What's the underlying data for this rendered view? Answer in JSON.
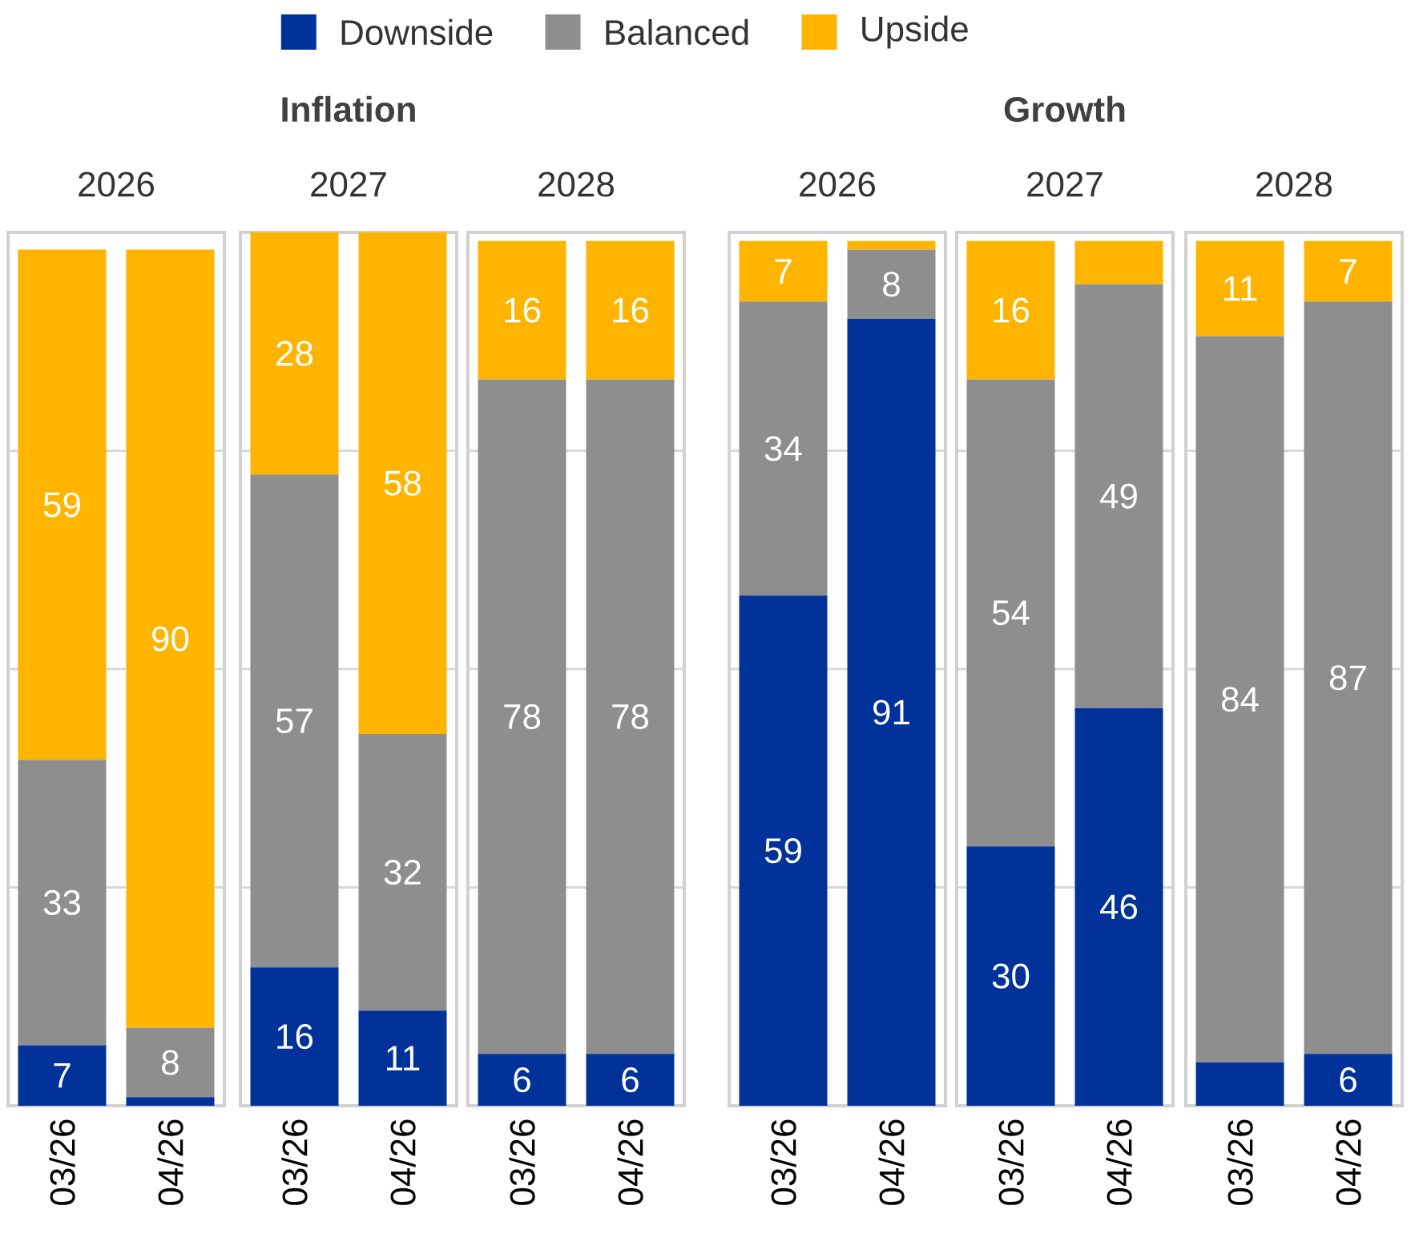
{
  "chart_data": [
    {
      "type": "bar",
      "stacked": true,
      "subtitle": "2026",
      "categories": [
        "03/26",
        "04/26"
      ],
      "legend": "top",
      "grid": "y",
      "tick_labels": "x",
      "series": [
        {
          "name": "Downside",
          "color": "#003299",
          "values": [
            7,
            1
          ],
          "value_labels": [
            "7",
            null
          ]
        },
        {
          "name": "Balanced",
          "color": "#8e8e8e",
          "values": [
            33,
            8
          ],
          "value_labels": [
            "33",
            "8"
          ]
        },
        {
          "name": "Upside",
          "color": "#ffb400",
          "values": [
            59,
            90
          ],
          "value_labels": [
            "59",
            "90"
          ]
        }
      ]
    },
    {
      "type": "bar",
      "stacked": true,
      "title": "Inflation",
      "subtitle": "2027",
      "categories": [
        "03/26",
        "04/26"
      ],
      "grid": "y",
      "tick_labels": "x",
      "series": [
        {
          "color": "#003299",
          "values": [
            16,
            11
          ],
          "value_labels": [
            "16",
            "11"
          ]
        },
        {
          "color": "#8e8e8e",
          "values": [
            57,
            32
          ],
          "value_labels": [
            "57",
            "32"
          ]
        },
        {
          "color": "#ffb400",
          "values": [
            28,
            58
          ],
          "value_labels": [
            "28",
            "58"
          ]
        }
      ]
    },
    {
      "type": "bar",
      "stacked": true,
      "subtitle": "2028",
      "categories": [
        "03/26",
        "04/26"
      ],
      "grid": "y",
      "tick_labels": "x",
      "series": [
        {
          "color": "#003299",
          "values": [
            6,
            6
          ],
          "value_labels": [
            "6",
            "6"
          ]
        },
        {
          "color": "#8e8e8e",
          "values": [
            78,
            78
          ],
          "value_labels": [
            "78",
            "78"
          ]
        },
        {
          "color": "#ffb400",
          "values": [
            16,
            16
          ],
          "value_labels": [
            "16",
            "16"
          ]
        }
      ]
    },
    {
      "type": "bar",
      "stacked": true,
      "subtitle": "2026",
      "categories": [
        "03/26",
        "04/26"
      ],
      "grid": "y",
      "tick_labels": "x",
      "series": [
        {
          "color": "#003299",
          "values": [
            59,
            91
          ],
          "value_labels": [
            "59",
            "91"
          ]
        },
        {
          "color": "#8e8e8e",
          "values": [
            34,
            8
          ],
          "value_labels": [
            "34",
            "8"
          ]
        },
        {
          "color": "#ffb400",
          "values": [
            7,
            1
          ],
          "value_labels": [
            "7",
            null
          ]
        }
      ]
    },
    {
      "type": "bar",
      "stacked": true,
      "title": "Growth",
      "subtitle": "2027",
      "categories": [
        "03/26",
        "04/26"
      ],
      "grid": "y",
      "tick_labels": "x",
      "series": [
        {
          "color": "#003299",
          "values": [
            30,
            46
          ],
          "value_labels": [
            "30",
            "46"
          ]
        },
        {
          "color": "#8e8e8e",
          "values": [
            54,
            49
          ],
          "value_labels": [
            "54",
            "49"
          ]
        },
        {
          "color": "#ffb400",
          "values": [
            16,
            5
          ],
          "value_labels": [
            "16",
            null
          ]
        }
      ]
    },
    {
      "type": "bar",
      "stacked": true,
      "subtitle": "2028",
      "categories": [
        "03/26",
        "04/26"
      ],
      "grid": "y",
      "tick_labels": "x",
      "series": [
        {
          "color": "#003299",
          "values": [
            5,
            6
          ],
          "value_labels": [
            null,
            "6"
          ]
        },
        {
          "color": "#8e8e8e",
          "values": [
            84,
            87
          ],
          "value_labels": [
            "84",
            "87"
          ]
        },
        {
          "color": "#ffb400",
          "values": [
            11,
            7
          ],
          "value_labels": [
            "11",
            "7"
          ]
        }
      ]
    }
  ]
}
